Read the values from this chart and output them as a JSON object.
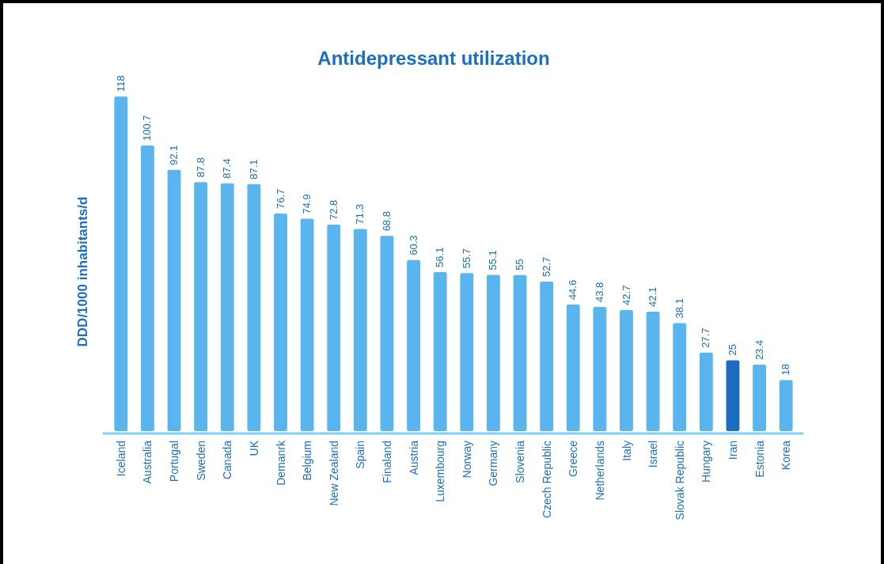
{
  "chart_data": {
    "type": "bar",
    "title": "Antidepressant utilization",
    "ylabel": "DDD/1000 inhabitants/d",
    "categories": [
      "Iceland",
      "Australia",
      "Portugal",
      "Sweden",
      "Canada",
      "UK",
      "Demanrk",
      "Belgium",
      "New Zealand",
      "Spain",
      "Finaland",
      "Austria",
      "Luxembourg",
      "Norway",
      "Germany",
      "Slovenia",
      "Czech Republic",
      "Greece",
      "Netherlands",
      "Italy",
      "Israel",
      "Slovak Republic",
      "Hungary",
      "Iran",
      "Estonia",
      "Korea"
    ],
    "values": [
      118,
      100.7,
      92.1,
      87.8,
      87.4,
      87.1,
      76.7,
      74.9,
      72.8,
      71.3,
      68.8,
      60.3,
      56.1,
      55.7,
      55.1,
      55,
      52.7,
      44.6,
      43.8,
      42.7,
      42.1,
      38.1,
      27.7,
      25,
      23.4,
      18
    ],
    "colors": [
      "#5ab4ee",
      "#5ab4ee",
      "#5ab4ee",
      "#5ab4ee",
      "#5ab4ee",
      "#5ab4ee",
      "#5ab4ee",
      "#5ab4ee",
      "#5ab4ee",
      "#5ab4ee",
      "#5ab4ee",
      "#5ab4ee",
      "#5ab4ee",
      "#5ab4ee",
      "#5ab4ee",
      "#5ab4ee",
      "#5ab4ee",
      "#5ab4ee",
      "#5ab4ee",
      "#5ab4ee",
      "#5ab4ee",
      "#5ab4ee",
      "#5ab4ee",
      "#1c6cbf",
      "#5ab4ee",
      "#5ab4ee"
    ],
    "data_labels": true
  }
}
